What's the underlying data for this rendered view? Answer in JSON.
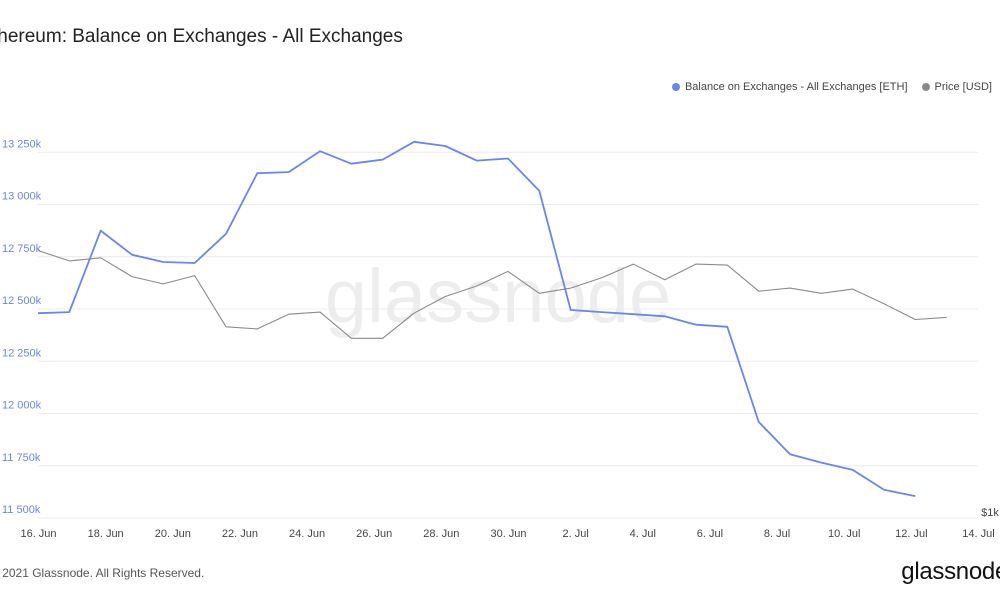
{
  "title": "thereum: Balance on Exchanges - All Exchanges",
  "footer": {
    "copyright": "2021 Glassnode. All Rights Reserved.",
    "logo": "glassnode"
  },
  "watermark": "glassnode",
  "colors": {
    "balance": "#6a86e8",
    "price": "#8a8a8a",
    "grid": "#ececec"
  },
  "chart_data": {
    "type": "line",
    "x_labels": [
      "16. Jun",
      "18. Jun",
      "20. Jun",
      "22. Jun",
      "24. Jun",
      "26. Jun",
      "28. Jun",
      "30. Jun",
      "2. Jul",
      "4. Jul",
      "6. Jul",
      "8. Jul",
      "10. Jul",
      "12. Jul",
      "14. Jul"
    ],
    "y_ticks": [
      "11 500k",
      "11 750k",
      "12 000k",
      "12 250k",
      "12 500k",
      "12 750k",
      "13 000k",
      "13 250k"
    ],
    "y_tick_values": [
      11500000,
      11750000,
      12000000,
      12250000,
      12500000,
      12750000,
      13000000,
      13250000
    ],
    "ylim": [
      11500000,
      13500000
    ],
    "right_axis_label": "$1k",
    "legend_position": "top-right",
    "grid": true,
    "series": [
      {
        "name": "Balance on Exchanges - All Exchanges [ETH]",
        "unit": "ETH",
        "x": [
          "2021-06-15",
          "2021-06-16",
          "2021-06-17",
          "2021-06-18",
          "2021-06-19",
          "2021-06-20",
          "2021-06-21",
          "2021-06-22",
          "2021-06-23",
          "2021-06-24",
          "2021-06-25",
          "2021-06-26",
          "2021-06-27",
          "2021-06-28",
          "2021-06-29",
          "2021-06-30",
          "2021-07-01",
          "2021-07-02",
          "2021-07-03",
          "2021-07-04",
          "2021-07-05",
          "2021-07-06",
          "2021-07-07",
          "2021-07-08",
          "2021-07-09",
          "2021-07-10",
          "2021-07-11",
          "2021-07-12",
          "2021-07-13"
        ],
        "values": [
          12480000,
          12485000,
          12875000,
          12760000,
          12725000,
          12720000,
          12860000,
          13150000,
          13155000,
          13255000,
          13195000,
          13215000,
          13300000,
          13280000,
          13210000,
          13220000,
          13065000,
          12495000,
          12485000,
          12475000,
          12465000,
          12425000,
          12415000,
          11960000,
          11805000,
          11765000,
          11730000,
          11635000,
          11605000
        ]
      },
      {
        "name": "Price [USD]",
        "unit": "USD",
        "values_rel": [
          12780000,
          12730000,
          12745000,
          12655000,
          12620000,
          12660000,
          12415000,
          12405000,
          12475000,
          12485000,
          12360000,
          12360000,
          12480000,
          12560000,
          12610000,
          12680000,
          12575000,
          12600000,
          12650000,
          12715000,
          12640000,
          12715000,
          12710000,
          12585000,
          12600000,
          12575000,
          12595000,
          12525000,
          12450000,
          12460000
        ],
        "x": [
          "2021-06-15",
          "2021-06-16",
          "2021-06-17",
          "2021-06-18",
          "2021-06-19",
          "2021-06-20",
          "2021-06-21",
          "2021-06-22",
          "2021-06-23",
          "2021-06-24",
          "2021-06-25",
          "2021-06-26",
          "2021-06-27",
          "2021-06-28",
          "2021-06-29",
          "2021-06-30",
          "2021-07-01",
          "2021-07-02",
          "2021-07-03",
          "2021-07-04",
          "2021-07-05",
          "2021-07-06",
          "2021-07-07",
          "2021-07-08",
          "2021-07-09",
          "2021-07-10",
          "2021-07-11",
          "2021-07-12",
          "2021-07-13",
          "2021-07-14"
        ]
      }
    ]
  }
}
